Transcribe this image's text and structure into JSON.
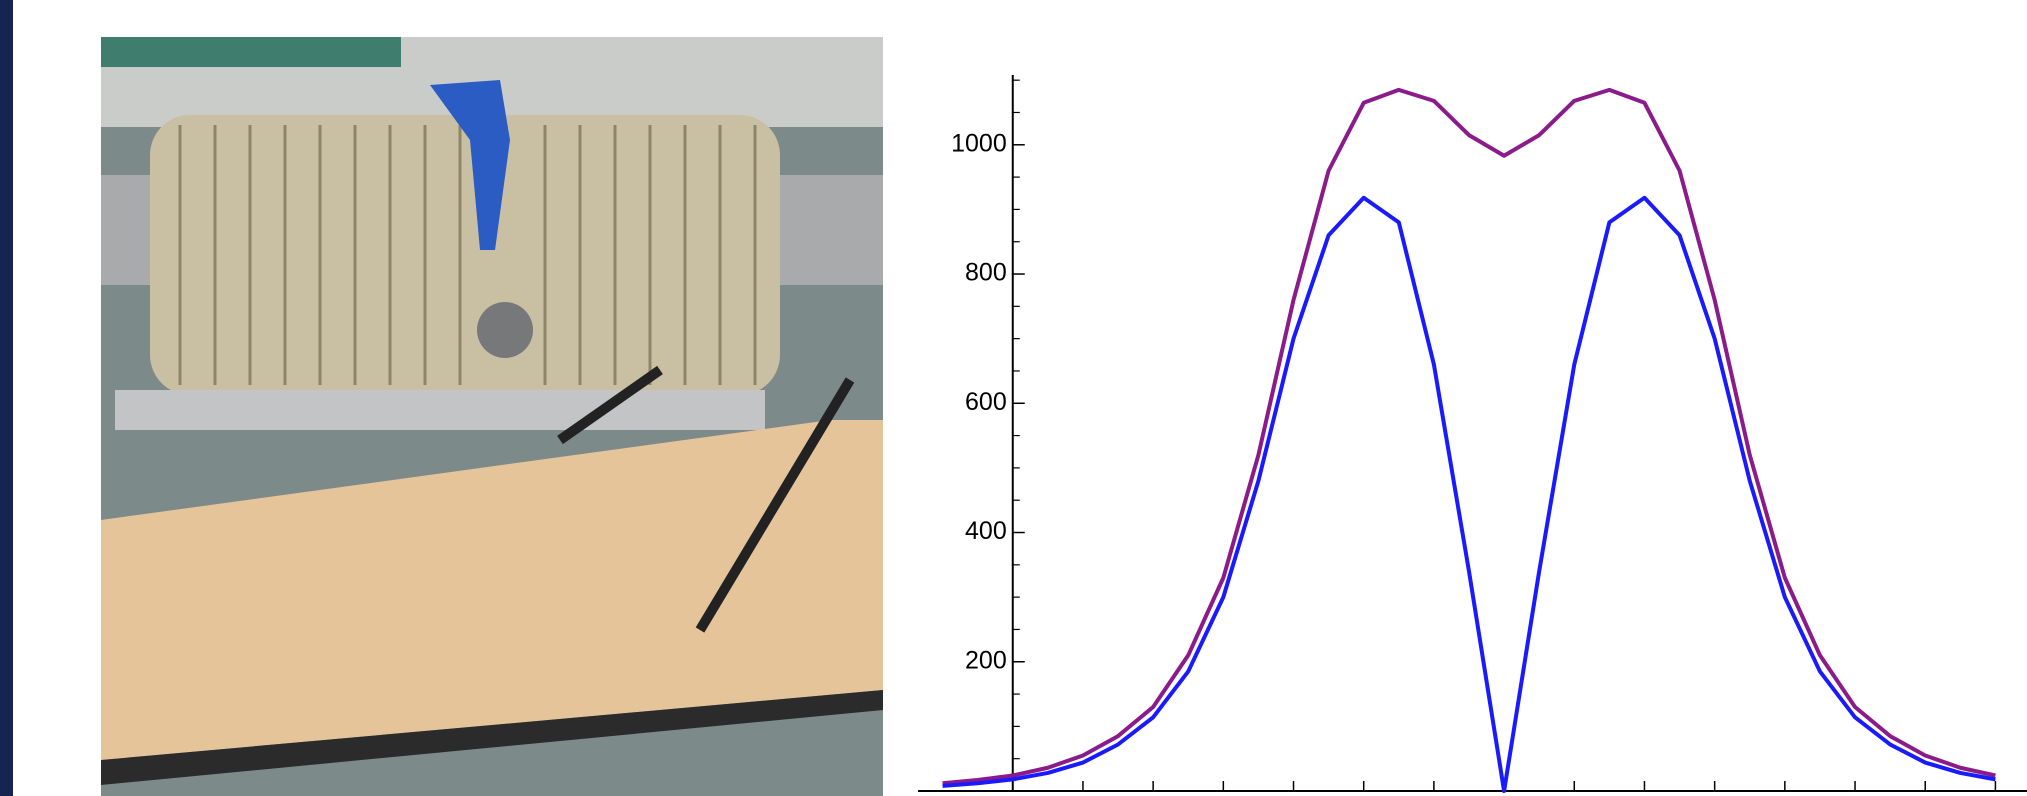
{
  "chart_data": {
    "type": "line",
    "x": [
      -8,
      -7.5,
      -7,
      -6.5,
      -6,
      -5.5,
      -5,
      -4.5,
      -4,
      -3.5,
      -3,
      -2.5,
      -2,
      -1.5,
      -1,
      -0.5,
      0,
      0.5,
      1,
      1.5,
      2,
      2.5,
      3,
      3.5,
      4,
      4.5,
      5,
      5.5,
      6,
      6.5,
      7
    ],
    "series": [
      {
        "color": "#8b1a8b",
        "values": [
          12,
          17,
          24,
          36,
          55,
          85,
          130,
          210,
          330,
          520,
          760,
          960,
          1065,
          1085,
          1068,
          1015,
          983,
          1015,
          1068,
          1085,
          1065,
          960,
          760,
          520,
          330,
          210,
          130,
          85,
          55,
          36,
          24
        ]
      },
      {
        "color": "#1a1aff",
        "values": [
          8,
          12,
          18,
          28,
          44,
          72,
          114,
          185,
          300,
          480,
          700,
          860,
          918,
          880,
          660,
          340,
          0,
          340,
          660,
          880,
          918,
          860,
          700,
          480,
          300,
          185,
          114,
          72,
          44,
          28,
          18
        ]
      }
    ],
    "xlim": [
      -8.35,
      7.45
    ],
    "ylim": [
      0,
      1108
    ],
    "xticks": [
      -7,
      -6,
      -5,
      -4,
      -3,
      -2,
      -1,
      0,
      1,
      2,
      3,
      4,
      5,
      6,
      7
    ],
    "yticks": [
      200,
      400,
      600,
      800,
      1000
    ],
    "yminorticks": [
      50,
      100,
      150,
      250,
      300,
      350,
      450,
      500,
      550,
      650,
      700,
      750,
      850,
      900,
      950,
      1050,
      1100
    ]
  }
}
